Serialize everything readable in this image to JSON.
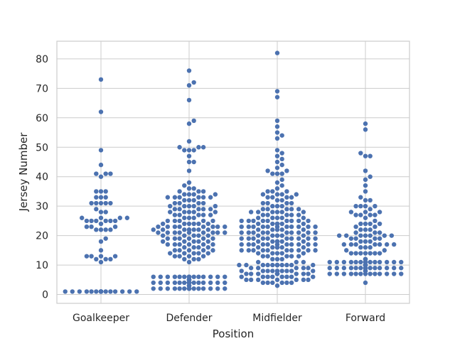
{
  "chart_data": {
    "type": "scatter",
    "subtype": "swarm",
    "title": "",
    "xlabel": "Position",
    "ylabel": "Jersey Number",
    "categories": [
      "Goalkeeper",
      "Defender",
      "Midfielder",
      "Forward"
    ],
    "ylim": [
      -3,
      86
    ],
    "yticks": [
      0,
      10,
      20,
      30,
      40,
      50,
      60,
      70,
      80
    ],
    "grid": true,
    "legend": "none",
    "point_color": "#4c72b0",
    "series": [
      {
        "category": "Goalkeeper",
        "values": [
          1,
          1,
          1,
          1,
          1,
          1,
          1,
          1,
          1,
          1,
          1,
          1,
          1,
          1,
          1,
          1,
          1,
          1,
          1,
          1,
          1,
          1,
          11,
          12,
          12,
          12,
          13,
          13,
          13,
          13,
          15,
          18,
          19,
          22,
          22,
          22,
          22,
          23,
          23,
          23,
          24,
          25,
          25,
          25,
          25,
          25,
          25,
          26,
          26,
          26,
          26,
          28,
          28,
          29,
          31,
          31,
          31,
          31,
          31,
          33,
          33,
          33,
          35,
          35,
          35,
          40,
          41,
          41,
          41,
          44,
          49,
          62,
          73
        ]
      },
      {
        "category": "Defender",
        "values": [
          2,
          2,
          2,
          2,
          2,
          2,
          2,
          2,
          2,
          2,
          2,
          2,
          2,
          2,
          2,
          2,
          2,
          2,
          2,
          2,
          2,
          3,
          3,
          3,
          4,
          4,
          4,
          4,
          4,
          4,
          4,
          4,
          4,
          4,
          4,
          4,
          4,
          4,
          4,
          4,
          4,
          4,
          4,
          4,
          5,
          5,
          5,
          5,
          5,
          5,
          5,
          5,
          5,
          6,
          6,
          6,
          6,
          6,
          6,
          6,
          6,
          6,
          6,
          6,
          6,
          6,
          6,
          6,
          6,
          6,
          6,
          11,
          12,
          12,
          12,
          13,
          13,
          13,
          13,
          14,
          14,
          14,
          14,
          14,
          15,
          15,
          15,
          15,
          15,
          16,
          16,
          16,
          16,
          17,
          17,
          17,
          17,
          17,
          17,
          18,
          18,
          18,
          18,
          18,
          19,
          19,
          19,
          19,
          19,
          19,
          20,
          20,
          20,
          20,
          20,
          21,
          21,
          21,
          21,
          21,
          21,
          21,
          21,
          21,
          22,
          22,
          22,
          22,
          22,
          22,
          22,
          22,
          23,
          23,
          23,
          23,
          23,
          23,
          23,
          23,
          24,
          24,
          24,
          24,
          24,
          24,
          25,
          25,
          25,
          25,
          25,
          26,
          26,
          26,
          27,
          27,
          27,
          27,
          27,
          28,
          28,
          28,
          28,
          28,
          29,
          29,
          29,
          29,
          29,
          30,
          30,
          30,
          30,
          30,
          31,
          31,
          31,
          31,
          32,
          32,
          32,
          33,
          33,
          33,
          33,
          33,
          33,
          34,
          34,
          34,
          34,
          35,
          35,
          35,
          36,
          36,
          37,
          38,
          42,
          45,
          45,
          47,
          49,
          49,
          49,
          50,
          50,
          50,
          52,
          58,
          59,
          66,
          71,
          72,
          76
        ]
      },
      {
        "category": "Midfielder",
        "values": [
          3,
          4,
          4,
          4,
          4,
          4,
          4,
          5,
          5,
          5,
          5,
          5,
          5,
          5,
          6,
          6,
          6,
          6,
          6,
          6,
          6,
          6,
          7,
          7,
          7,
          7,
          7,
          7,
          7,
          7,
          7,
          7,
          8,
          8,
          8,
          8,
          8,
          8,
          8,
          8,
          8,
          8,
          9,
          9,
          9,
          9,
          9,
          10,
          10,
          10,
          10,
          10,
          10,
          10,
          10,
          10,
          10,
          10,
          10,
          10,
          10,
          10,
          11,
          11,
          11,
          12,
          12,
          12,
          13,
          13,
          13,
          13,
          13,
          14,
          14,
          14,
          14,
          14,
          15,
          15,
          15,
          15,
          15,
          15,
          15,
          15,
          15,
          15,
          16,
          16,
          16,
          16,
          16,
          16,
          16,
          17,
          17,
          17,
          17,
          17,
          17,
          17,
          17,
          17,
          17,
          17,
          18,
          18,
          18,
          18,
          18,
          18,
          18,
          18,
          19,
          19,
          19,
          19,
          19,
          19,
          19,
          19,
          19,
          19,
          20,
          20,
          20,
          20,
          20,
          20,
          21,
          21,
          21,
          21,
          21,
          21,
          21,
          21,
          21,
          21,
          22,
          22,
          22,
          22,
          22,
          23,
          23,
          23,
          23,
          23,
          23,
          23,
          23,
          23,
          23,
          23,
          24,
          24,
          24,
          24,
          24,
          24,
          24,
          25,
          25,
          25,
          25,
          25,
          25,
          25,
          25,
          25,
          26,
          26,
          26,
          26,
          26,
          27,
          27,
          27,
          27,
          27,
          28,
          28,
          28,
          28,
          28,
          28,
          29,
          29,
          29,
          29,
          29,
          30,
          30,
          30,
          31,
          31,
          31,
          31,
          32,
          32,
          33,
          33,
          33,
          33,
          34,
          34,
          34,
          34,
          35,
          35,
          35,
          36,
          37,
          38,
          39,
          41,
          41,
          41,
          42,
          42,
          43,
          44,
          45,
          46,
          47,
          48,
          49,
          53,
          54,
          55,
          57,
          59,
          67,
          69,
          82
        ]
      },
      {
        "category": "Forward",
        "values": [
          4,
          7,
          7,
          7,
          7,
          7,
          7,
          7,
          7,
          7,
          7,
          7,
          7,
          7,
          8,
          8,
          8,
          8,
          9,
          9,
          9,
          9,
          9,
          9,
          9,
          9,
          9,
          9,
          9,
          9,
          9,
          9,
          9,
          9,
          10,
          10,
          10,
          10,
          10,
          10,
          10,
          10,
          10,
          10,
          10,
          11,
          11,
          11,
          11,
          11,
          11,
          11,
          11,
          11,
          11,
          11,
          11,
          11,
          11,
          11,
          11,
          12,
          12,
          12,
          12,
          14,
          14,
          14,
          14,
          14,
          14,
          14,
          15,
          15,
          16,
          16,
          16,
          17,
          17,
          17,
          17,
          17,
          17,
          17,
          18,
          18,
          18,
          19,
          19,
          19,
          19,
          20,
          20,
          20,
          20,
          20,
          20,
          20,
          21,
          21,
          21,
          22,
          22,
          22,
          23,
          23,
          24,
          24,
          24,
          24,
          25,
          26,
          27,
          27,
          27,
          27,
          28,
          28,
          28,
          29,
          30,
          30,
          30,
          30,
          32,
          32,
          33,
          35,
          37,
          39,
          40,
          42,
          47,
          47,
          48,
          56,
          58
        ]
      }
    ]
  }
}
